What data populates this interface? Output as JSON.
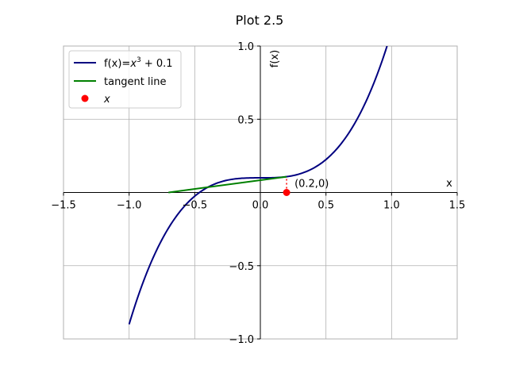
{
  "chart_data": {
    "type": "line",
    "title": "Plot 2.5",
    "xlabel": "x",
    "ylabel": "f(x)",
    "xlim": [
      -1.5,
      1.5
    ],
    "ylim": [
      -1.0,
      1.0
    ],
    "xticks": [
      -1.5,
      -1.0,
      -0.5,
      0.0,
      0.5,
      1.0,
      1.5
    ],
    "xtick_labels": [
      "−1.5",
      "−1.0",
      "−0.5",
      "0.0",
      "0.5",
      "1.0",
      "1.5"
    ],
    "yticks": [
      -1.0,
      -0.5,
      0.5,
      1.0
    ],
    "ytick_labels": [
      "−1.0",
      "−0.5",
      "0.5",
      "1.0"
    ],
    "grid": true,
    "legend_position": "top-left",
    "legend": {
      "f_label_prefix": "f(x)=",
      "f_label_math": "x",
      "f_label_sup": "3",
      "f_label_suffix": " + 0.1",
      "tangent_label": "tangent line",
      "point_label": "x"
    },
    "series": [
      {
        "name": "f(x)=x^3 + 0.1",
        "color": "#000080",
        "x": [
          -1.0,
          -0.9,
          -0.8,
          -0.7,
          -0.6,
          -0.5,
          -0.4,
          -0.3,
          -0.2,
          -0.1,
          0.0,
          0.1,
          0.2,
          0.3,
          0.4,
          0.5,
          0.6,
          0.7,
          0.8,
          0.9,
          0.9655
        ],
        "y": [
          -0.9,
          -0.629,
          -0.412,
          -0.243,
          -0.116,
          -0.025,
          0.036,
          0.073,
          0.092,
          0.099,
          0.1,
          0.101,
          0.108,
          0.127,
          0.164,
          0.225,
          0.316,
          0.443,
          0.612,
          0.829,
          1.0
        ]
      },
      {
        "name": "tangent line",
        "color": "#008000",
        "x": [
          -0.7,
          0.2
        ],
        "y": [
          0.0,
          0.108
        ]
      }
    ],
    "point": {
      "x": 0.2,
      "y": 0.0,
      "color": "#ff0000",
      "label": "x"
    },
    "annotation": "(0.2,0)"
  }
}
